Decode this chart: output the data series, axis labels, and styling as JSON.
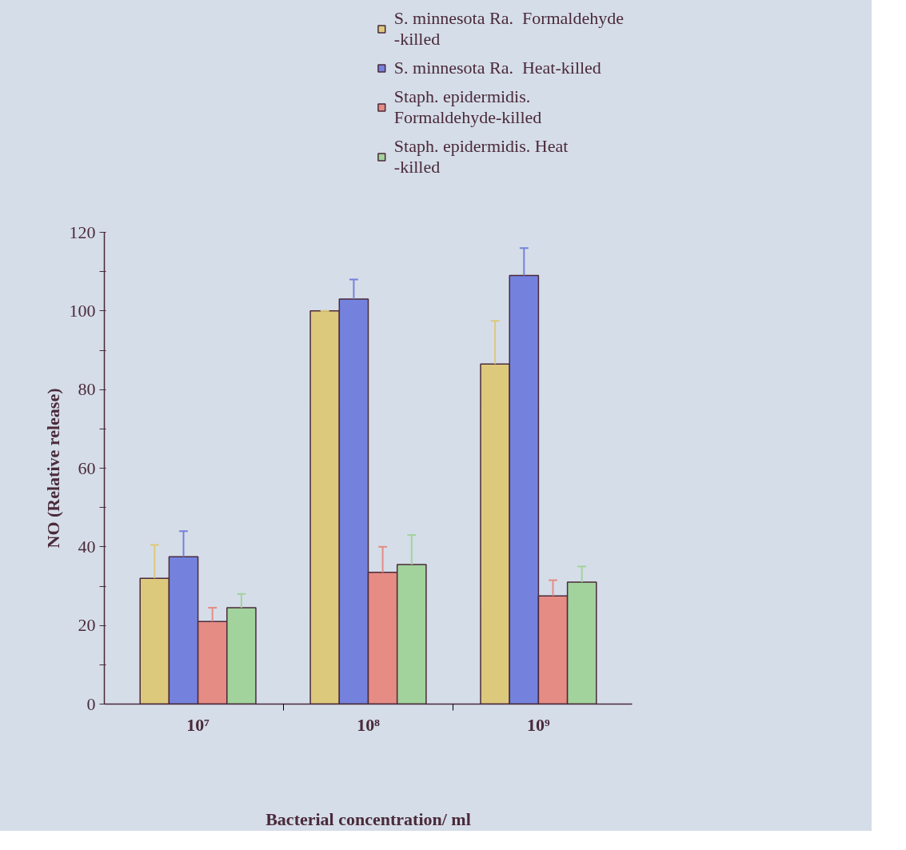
{
  "chart_data": {
    "type": "bar",
    "xlabel": "Bacterial concentration/ ml",
    "ylabel": "NO (Relative release)",
    "categories": [
      "10⁷",
      "10⁸",
      "10⁹"
    ],
    "series": [
      {
        "name": "S. minnesota Ra.  Formaldehyde\n-killed",
        "color": "#dcc97c",
        "values": [
          32,
          100,
          86.5
        ],
        "errors": [
          [
            32,
            40.5
          ],
          [
            100,
            100
          ],
          [
            86.5,
            97.5
          ]
        ]
      },
      {
        "name": "S. minnesota Ra.  Heat-killed",
        "color": "#7482de",
        "values": [
          37.5,
          103,
          109
        ],
        "errors": [
          [
            37.5,
            44
          ],
          [
            103,
            108
          ],
          [
            109,
            116
          ]
        ]
      },
      {
        "name": "Staph. epidermidis.\nFormaldehyde-killed",
        "color": "#e58c84",
        "values": [
          21,
          33.5,
          27.5
        ],
        "errors": [
          [
            21,
            24.5
          ],
          [
            33.5,
            40
          ],
          [
            27.5,
            31.5
          ]
        ]
      },
      {
        "name": "Staph. epidermidis. Heat\n-killed",
        "color": "#a2d39c",
        "values": [
          24.5,
          35.5,
          31
        ],
        "errors": [
          [
            24.5,
            28
          ],
          [
            35.5,
            43
          ],
          [
            31,
            35
          ]
        ]
      }
    ],
    "ylim": [
      0,
      120
    ],
    "yticks": [
      0,
      {
        "value": 10,
        "label": null
      },
      20,
      {
        "value": 30,
        "label": null
      },
      40,
      {
        "value": 50,
        "label": null
      },
      60,
      {
        "value": 70,
        "label": null
      },
      80,
      {
        "value": 90,
        "label": null
      },
      100,
      {
        "value": 110,
        "label": null
      },
      120
    ],
    "grid": false,
    "legend": "top right"
  }
}
